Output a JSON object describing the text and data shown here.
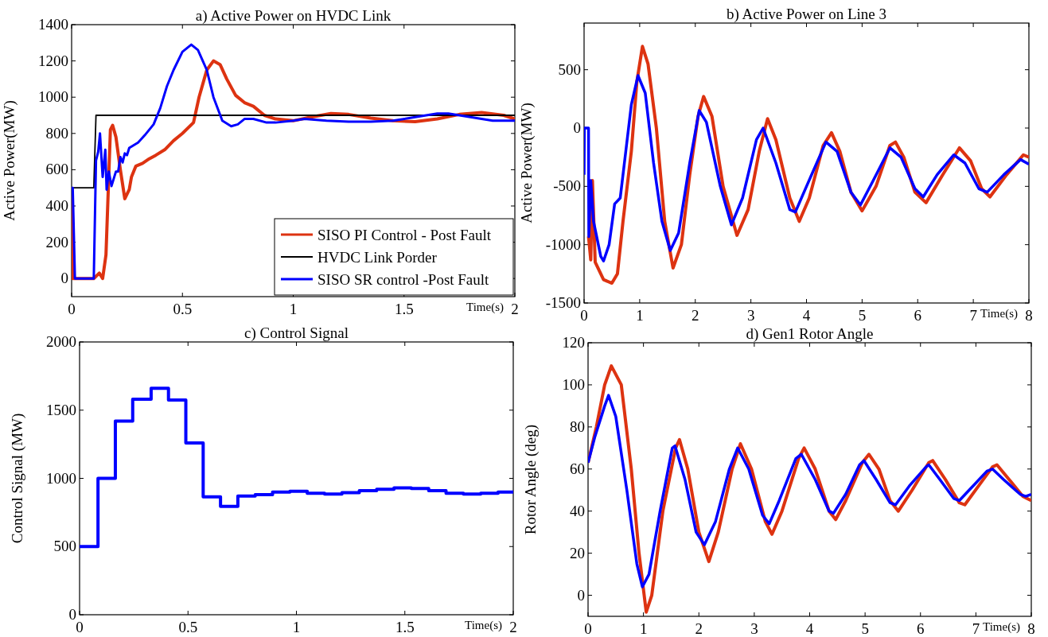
{
  "chart_data": [
    {
      "type": "line",
      "title": "a) Active Power on HVDC Link",
      "xlabel": "Time(s)",
      "ylabel": "Active Power(MW)",
      "xlim": [
        0,
        2
      ],
      "ylim": [
        -100,
        1400
      ],
      "xticks": [
        0,
        0.5,
        1,
        1.5,
        2
      ],
      "yticks": [
        0,
        200,
        400,
        600,
        800,
        1000,
        1200,
        1400
      ],
      "legend": "bottom right",
      "grid": false,
      "series": [
        {
          "name": "SISO PI Control - Post Fault",
          "color": "#dd3311",
          "x": [
            0,
            0.005,
            0.1,
            0.125,
            0.14,
            0.155,
            0.175,
            0.185,
            0.2,
            0.22,
            0.24,
            0.26,
            0.27,
            0.29,
            0.32,
            0.35,
            0.38,
            0.42,
            0.46,
            0.5,
            0.55,
            0.575,
            0.61,
            0.64,
            0.67,
            0.7,
            0.74,
            0.78,
            0.82,
            0.87,
            0.92,
            1.0,
            1.08,
            1.17,
            1.25,
            1.35,
            1.45,
            1.55,
            1.65,
            1.75,
            1.85,
            1.95,
            2.0
          ],
          "values": [
            500,
            0,
            0,
            30,
            0,
            130,
            820,
            845,
            780,
            600,
            440,
            490,
            560,
            620,
            635,
            660,
            680,
            710,
            760,
            800,
            860,
            1000,
            1150,
            1200,
            1180,
            1100,
            1010,
            970,
            950,
            900,
            880,
            870,
            890,
            910,
            905,
            885,
            870,
            865,
            880,
            905,
            915,
            900,
            880
          ]
        },
        {
          "name": "HVDC Link Porder",
          "color": "#000000",
          "x": [
            0,
            0.1,
            0.11,
            2.0
          ],
          "values": [
            500,
            500,
            900,
            900
          ]
        },
        {
          "name": "SISO SR control -Post Fault",
          "color": "#0000ff",
          "x": [
            0,
            0.005,
            0.015,
            0.1,
            0.11,
            0.12,
            0.128,
            0.14,
            0.152,
            0.158,
            0.168,
            0.18,
            0.2,
            0.21,
            0.22,
            0.23,
            0.24,
            0.25,
            0.26,
            0.3,
            0.33,
            0.37,
            0.4,
            0.43,
            0.46,
            0.5,
            0.54,
            0.57,
            0.61,
            0.64,
            0.68,
            0.72,
            0.75,
            0.78,
            0.82,
            0.88,
            0.92,
            1.0,
            1.05,
            1.15,
            1.25,
            1.35,
            1.45,
            1.55,
            1.65,
            1.7,
            1.8,
            1.9,
            2.0
          ],
          "values": [
            500,
            500,
            0,
            0,
            650,
            700,
            800,
            560,
            710,
            490,
            590,
            510,
            590,
            590,
            670,
            640,
            690,
            680,
            720,
            750,
            790,
            850,
            940,
            1060,
            1150,
            1250,
            1290,
            1260,
            1150,
            1000,
            870,
            840,
            850,
            880,
            880,
            860,
            860,
            870,
            880,
            870,
            865,
            865,
            870,
            890,
            910,
            910,
            890,
            870,
            870
          ]
        }
      ]
    },
    {
      "type": "line",
      "title": "b) Active Power on Line 3",
      "xlabel": "Time(s)",
      "ylabel": "Active Power(MW)",
      "xlim": [
        0,
        8
      ],
      "ylim": [
        -1500,
        900
      ],
      "xticks": [
        0,
        1,
        2,
        3,
        4,
        5,
        6,
        7,
        8
      ],
      "yticks": [
        -1500,
        -1000,
        -500,
        0,
        500
      ],
      "grid": false,
      "series": [
        {
          "color": "#dd3311",
          "x": [
            0.08,
            0.12,
            0.15,
            0.2,
            0.35,
            0.5,
            0.6,
            0.7,
            0.85,
            0.95,
            1.05,
            1.15,
            1.3,
            1.45,
            1.6,
            1.75,
            1.9,
            2.05,
            2.15,
            2.3,
            2.5,
            2.75,
            2.95,
            3.15,
            3.3,
            3.45,
            3.7,
            3.87,
            4.05,
            4.3,
            4.45,
            4.6,
            4.8,
            5.0,
            5.25,
            5.5,
            5.6,
            5.75,
            5.95,
            6.15,
            6.45,
            6.75,
            6.95,
            7.15,
            7.3,
            7.6,
            7.9,
            8.0
          ],
          "values": [
            -930,
            -1130,
            -450,
            -1150,
            -1300,
            -1330,
            -1250,
            -800,
            -200,
            400,
            700,
            550,
            0,
            -800,
            -1200,
            -1000,
            -400,
            100,
            270,
            100,
            -500,
            -920,
            -700,
            -200,
            80,
            -100,
            -600,
            -800,
            -600,
            -150,
            -40,
            -200,
            -550,
            -710,
            -500,
            -150,
            -120,
            -250,
            -550,
            -640,
            -400,
            -170,
            -280,
            -520,
            -590,
            -400,
            -230,
            -250
          ]
        },
        {
          "color": "#0000ff",
          "x": [
            0,
            0.005,
            0.08,
            0.085,
            0.12,
            0.17,
            0.3,
            0.35,
            0.45,
            0.55,
            0.65,
            0.75,
            0.85,
            0.97,
            1.1,
            1.25,
            1.4,
            1.55,
            1.7,
            1.9,
            2.07,
            2.2,
            2.45,
            2.65,
            2.85,
            3.1,
            3.22,
            3.45,
            3.7,
            3.8,
            4.0,
            4.35,
            4.55,
            4.8,
            4.97,
            5.2,
            5.5,
            5.7,
            5.95,
            6.1,
            6.35,
            6.65,
            6.85,
            7.1,
            7.25,
            7.55,
            7.85,
            8.0
          ],
          "values": [
            -400,
            0,
            0,
            -930,
            -450,
            -800,
            -1100,
            -1140,
            -1000,
            -650,
            -600,
            -200,
            200,
            450,
            300,
            -300,
            -800,
            -1050,
            -900,
            -300,
            150,
            50,
            -500,
            -830,
            -600,
            -100,
            0,
            -300,
            -700,
            -720,
            -500,
            -120,
            -200,
            -550,
            -660,
            -450,
            -170,
            -250,
            -520,
            -590,
            -400,
            -230,
            -300,
            -520,
            -550,
            -400,
            -270,
            -310
          ]
        }
      ]
    },
    {
      "type": "step",
      "title": "c) Control Signal",
      "xlabel": "Time(s)",
      "ylabel": "Control Signal (MW)",
      "xlim": [
        0,
        2
      ],
      "ylim": [
        0,
        2000
      ],
      "xticks": [
        0,
        0.5,
        1,
        1.5,
        2
      ],
      "yticks": [
        0,
        500,
        1000,
        1500,
        2000
      ],
      "grid": false,
      "series": [
        {
          "color": "#0000ff",
          "x": [
            0,
            0.085,
            0.165,
            0.245,
            0.33,
            0.41,
            0.49,
            0.57,
            0.65,
            0.73,
            0.81,
            0.89,
            0.97,
            1.05,
            1.13,
            1.21,
            1.29,
            1.37,
            1.45,
            1.53,
            1.61,
            1.69,
            1.77,
            1.85,
            1.93,
            2.0
          ],
          "values": [
            500,
            1000,
            1420,
            1580,
            1660,
            1575,
            1260,
            865,
            795,
            870,
            880,
            900,
            905,
            890,
            885,
            895,
            910,
            920,
            930,
            925,
            910,
            890,
            885,
            890,
            900,
            900
          ]
        }
      ]
    },
    {
      "type": "line",
      "title": "d) Gen1 Rotor Angle",
      "xlabel": "Time(s)",
      "ylabel": "Rotor Angle (deg)",
      "xlim": [
        0,
        8
      ],
      "ylim": [
        -10,
        120
      ],
      "xticks": [
        0,
        1,
        2,
        3,
        4,
        5,
        6,
        7,
        8
      ],
      "yticks": [
        0,
        20,
        40,
        60,
        80,
        100,
        120
      ],
      "grid": false,
      "series": [
        {
          "color": "#dd3311",
          "x": [
            0,
            0.15,
            0.3,
            0.42,
            0.6,
            0.78,
            0.92,
            1.05,
            1.15,
            1.35,
            1.58,
            1.65,
            1.8,
            2.0,
            2.18,
            2.35,
            2.6,
            2.75,
            2.95,
            3.2,
            3.32,
            3.5,
            3.8,
            3.9,
            4.1,
            4.35,
            4.47,
            4.65,
            4.95,
            5.07,
            5.25,
            5.45,
            5.6,
            5.85,
            6.15,
            6.22,
            6.45,
            6.7,
            6.8,
            7.05,
            7.3,
            7.38,
            7.6,
            7.85,
            8.0
          ],
          "values": [
            63,
            80,
            100,
            109,
            100,
            60,
            20,
            -8,
            0,
            40,
            70,
            74,
            60,
            30,
            16,
            30,
            60,
            72,
            60,
            35,
            29,
            40,
            65,
            70,
            60,
            40,
            36,
            45,
            63,
            67,
            60,
            45,
            40,
            50,
            63,
            64,
            55,
            44,
            43,
            52,
            61,
            62,
            55,
            47,
            45
          ]
        },
        {
          "color": "#0000ff",
          "x": [
            0,
            0.12,
            0.3,
            0.37,
            0.5,
            0.7,
            0.88,
            0.98,
            1.1,
            1.3,
            1.52,
            1.57,
            1.75,
            1.95,
            2.1,
            2.3,
            2.55,
            2.7,
            2.9,
            3.15,
            3.27,
            3.45,
            3.75,
            3.85,
            4.1,
            4.35,
            4.43,
            4.65,
            4.9,
            4.98,
            5.2,
            5.45,
            5.55,
            5.8,
            6.1,
            6.15,
            6.35,
            6.6,
            6.7,
            6.95,
            7.2,
            7.3,
            7.5,
            7.8,
            7.9,
            8.0
          ],
          "values": [
            63,
            75,
            90,
            95,
            85,
            50,
            15,
            4,
            10,
            40,
            70,
            71,
            55,
            30,
            24,
            35,
            60,
            70,
            60,
            38,
            34,
            45,
            65,
            67,
            55,
            40,
            39,
            48,
            62,
            64,
            55,
            44,
            43,
            52,
            61,
            62,
            55,
            46,
            45,
            52,
            59,
            60,
            55,
            48,
            47,
            48
          ]
        }
      ]
    }
  ]
}
